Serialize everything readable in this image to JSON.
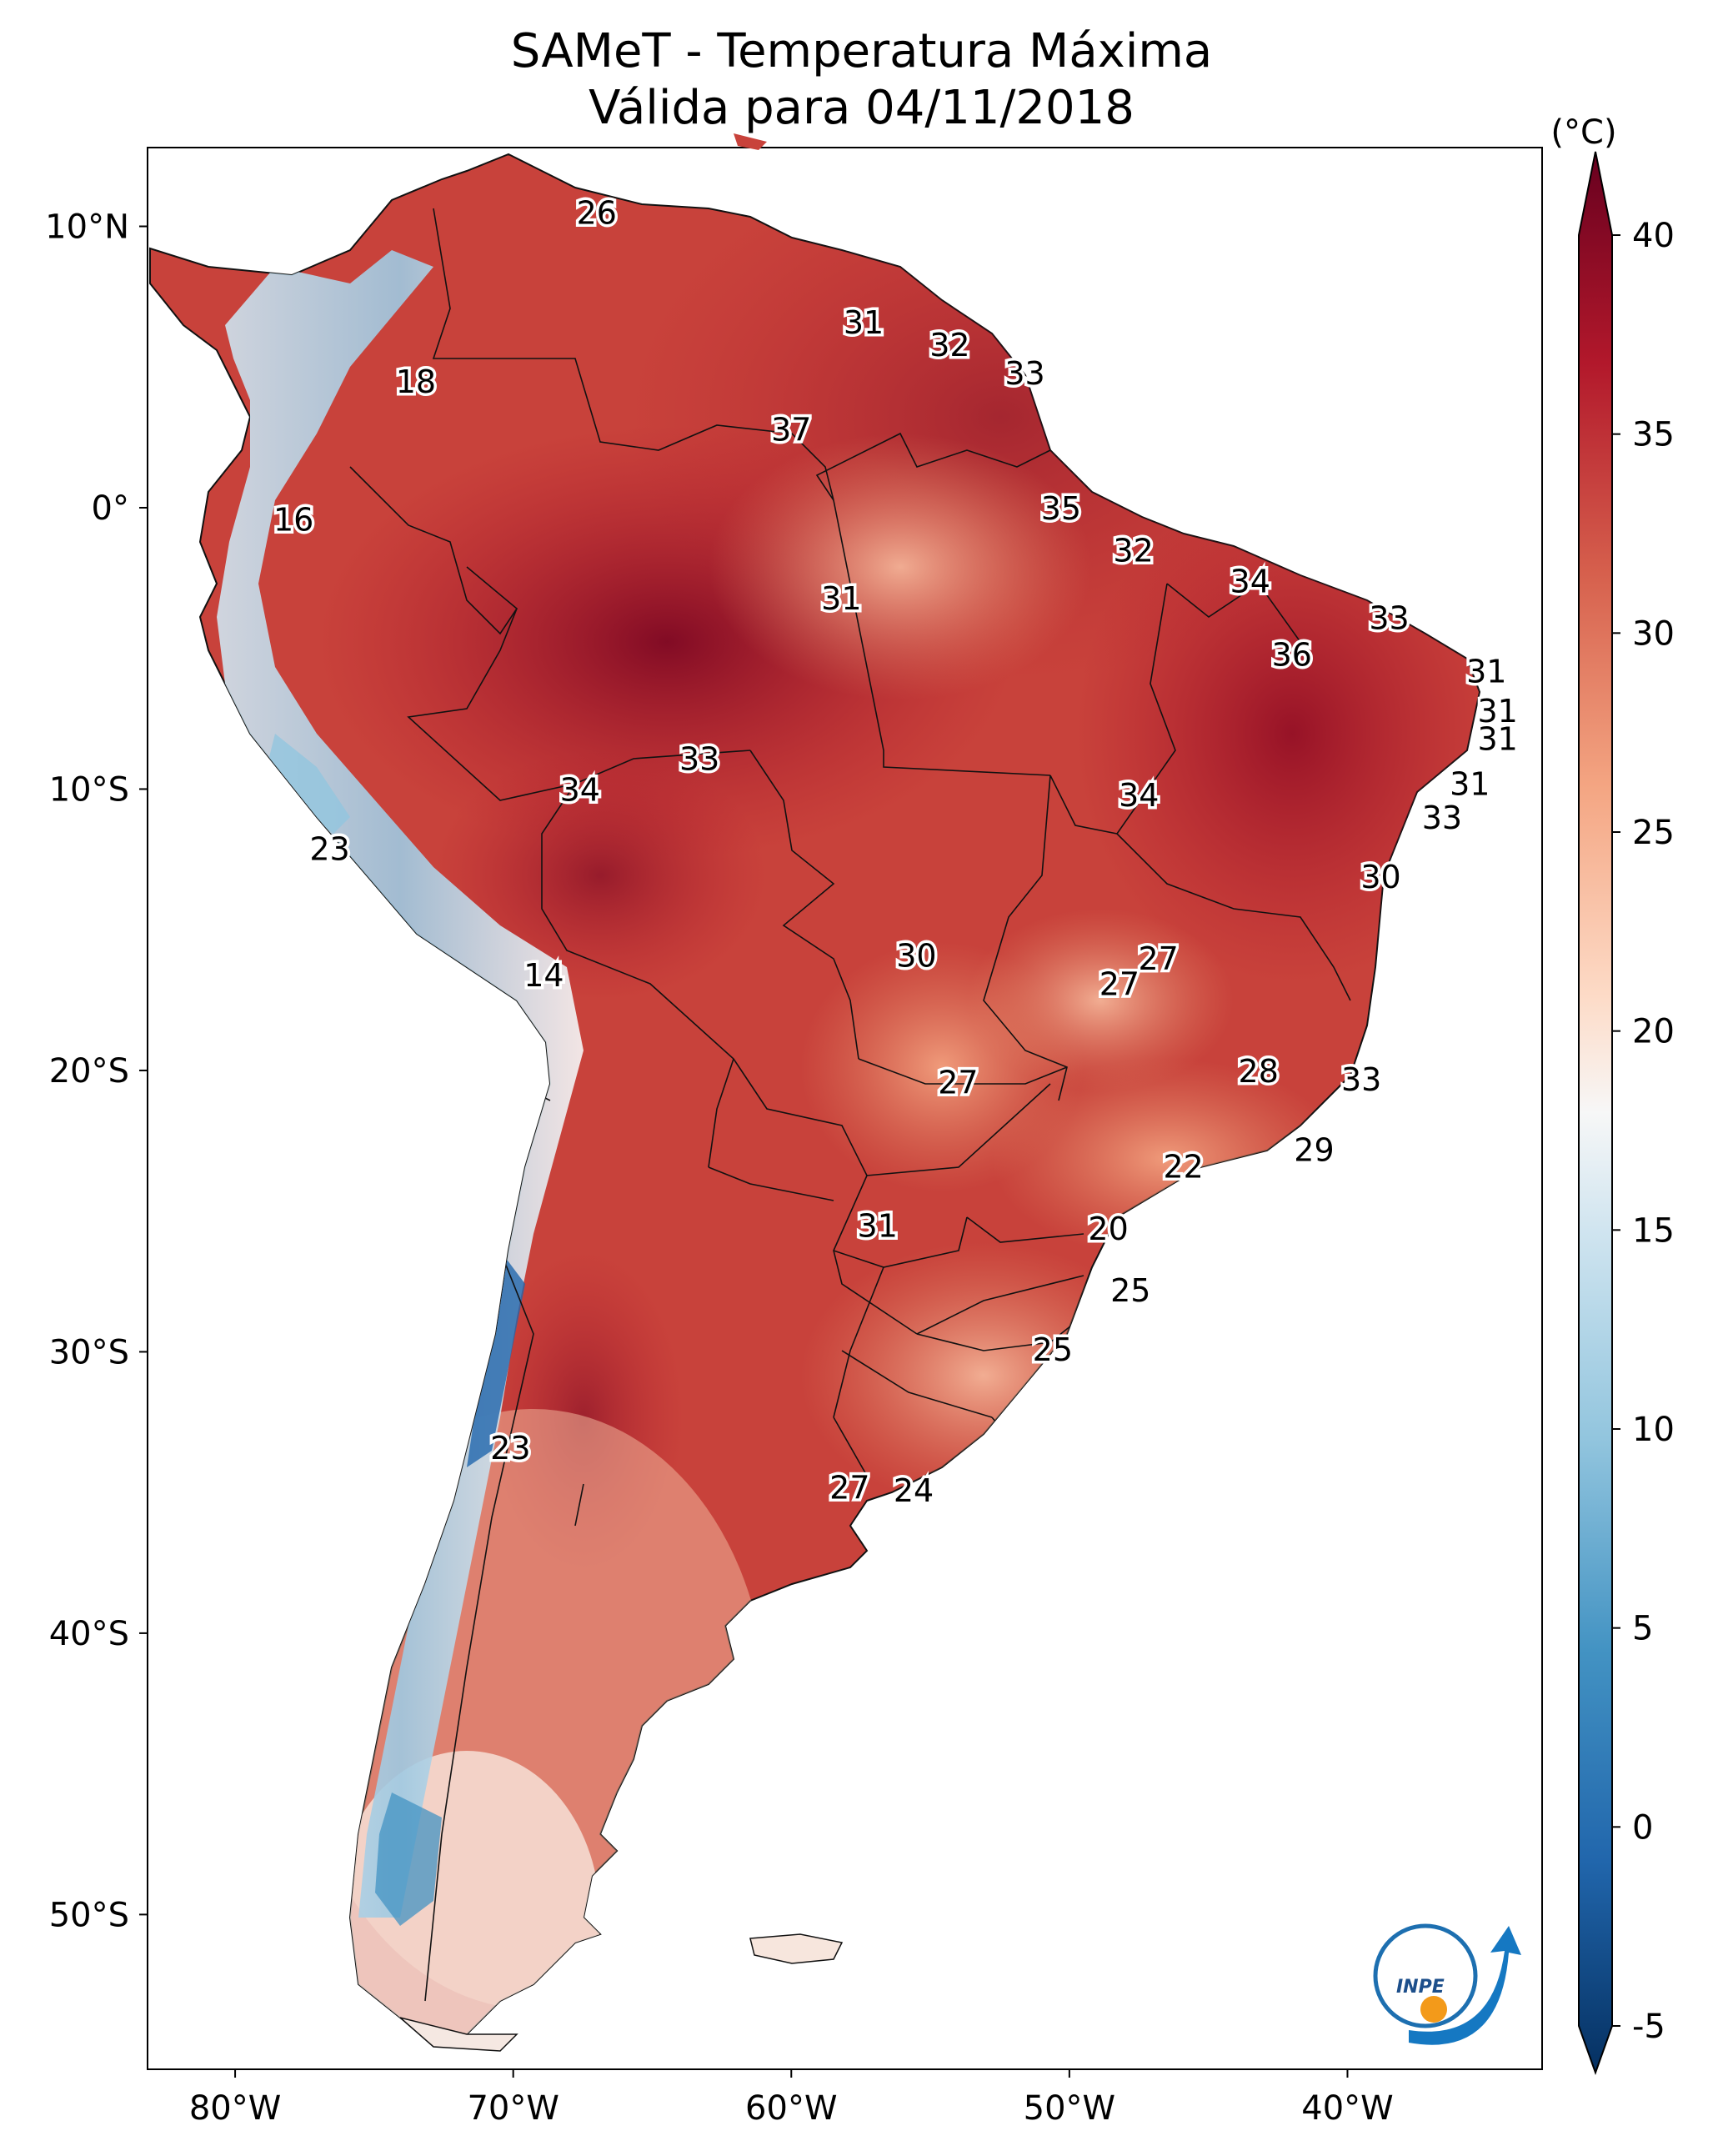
{
  "title": {
    "line1": "SAMeT - Temperatura Máxima",
    "line2": "Válida para 04/11/2018"
  },
  "map": {
    "lon_ticks": [
      "80°W",
      "70°W",
      "60°W",
      "50°W",
      "40°W"
    ],
    "lat_ticks": [
      "10°N",
      "0°",
      "10°S",
      "20°S",
      "30°S",
      "40°S",
      "50°S"
    ],
    "labels": [
      {
        "text": "26",
        "lon": -67.0,
        "lat": 10.5
      },
      {
        "text": "18",
        "lon": -73.5,
        "lat": 4.5
      },
      {
        "text": "16",
        "lon": -77.9,
        "lat": -0.4
      },
      {
        "text": "31",
        "lon": -57.4,
        "lat": 6.6
      },
      {
        "text": "32",
        "lon": -54.3,
        "lat": 5.8
      },
      {
        "text": "33",
        "lon": -51.6,
        "lat": 4.8
      },
      {
        "text": "37",
        "lon": -60.0,
        "lat": 2.8
      },
      {
        "text": "35",
        "lon": -50.3,
        "lat": 0.0
      },
      {
        "text": "32",
        "lon": -47.7,
        "lat": -1.5
      },
      {
        "text": "34",
        "lon": -43.5,
        "lat": -2.6
      },
      {
        "text": "33",
        "lon": -38.5,
        "lat": -3.9
      },
      {
        "text": "36",
        "lon": -42.0,
        "lat": -5.2
      },
      {
        "text": "31",
        "lon": -58.2,
        "lat": -3.2
      },
      {
        "text": "31",
        "lon": -35.0,
        "lat": -5.8
      },
      {
        "text": "31",
        "lon": -34.6,
        "lat": -7.2
      },
      {
        "text": "31",
        "lon": -34.6,
        "lat": -8.2
      },
      {
        "text": "31",
        "lon": -35.6,
        "lat": -9.8
      },
      {
        "text": "33",
        "lon": -36.6,
        "lat": -11.0
      },
      {
        "text": "30",
        "lon": -38.8,
        "lat": -13.1
      },
      {
        "text": "33",
        "lon": -63.3,
        "lat": -8.9
      },
      {
        "text": "34",
        "lon": -67.6,
        "lat": -10.0
      },
      {
        "text": "34",
        "lon": -47.5,
        "lat": -10.2
      },
      {
        "text": "23",
        "lon": -76.6,
        "lat": -12.1
      },
      {
        "text": "14",
        "lon": -68.9,
        "lat": -16.6
      },
      {
        "text": "30",
        "lon": -55.5,
        "lat": -15.9
      },
      {
        "text": "27",
        "lon": -46.8,
        "lat": -16.0
      },
      {
        "text": "27",
        "lon": -48.2,
        "lat": -16.9
      },
      {
        "text": "28",
        "lon": -43.2,
        "lat": -20.0
      },
      {
        "text": "33",
        "lon": -39.5,
        "lat": -20.3
      },
      {
        "text": "27",
        "lon": -54.0,
        "lat": -20.4
      },
      {
        "text": "29",
        "lon": -41.2,
        "lat": -22.8
      },
      {
        "text": "22",
        "lon": -45.9,
        "lat": -23.4
      },
      {
        "text": "31",
        "lon": -56.9,
        "lat": -25.5
      },
      {
        "text": "20",
        "lon": -48.6,
        "lat": -25.6
      },
      {
        "text": "25",
        "lon": -47.8,
        "lat": -27.8
      },
      {
        "text": "25",
        "lon": -50.6,
        "lat": -29.9
      },
      {
        "text": "23",
        "lon": -70.1,
        "lat": -33.4
      },
      {
        "text": "27",
        "lon": -57.9,
        "lat": -34.8
      },
      {
        "text": "24",
        "lon": -55.6,
        "lat": -34.9
      }
    ]
  },
  "colorbar": {
    "unit": "(°C)",
    "ticks": [
      "40",
      "35",
      "30",
      "25",
      "20",
      "15",
      "10",
      "5",
      "0",
      "-5"
    ],
    "min": -5,
    "max": 40,
    "colors": [
      "#67001f",
      "#b2182b",
      "#d6604d",
      "#f4a582",
      "#fddbc7",
      "#f7f7f7",
      "#d1e5f0",
      "#92c5de",
      "#4393c3",
      "#2166ac",
      "#053061"
    ]
  },
  "logo": {
    "text": "INPE"
  }
}
